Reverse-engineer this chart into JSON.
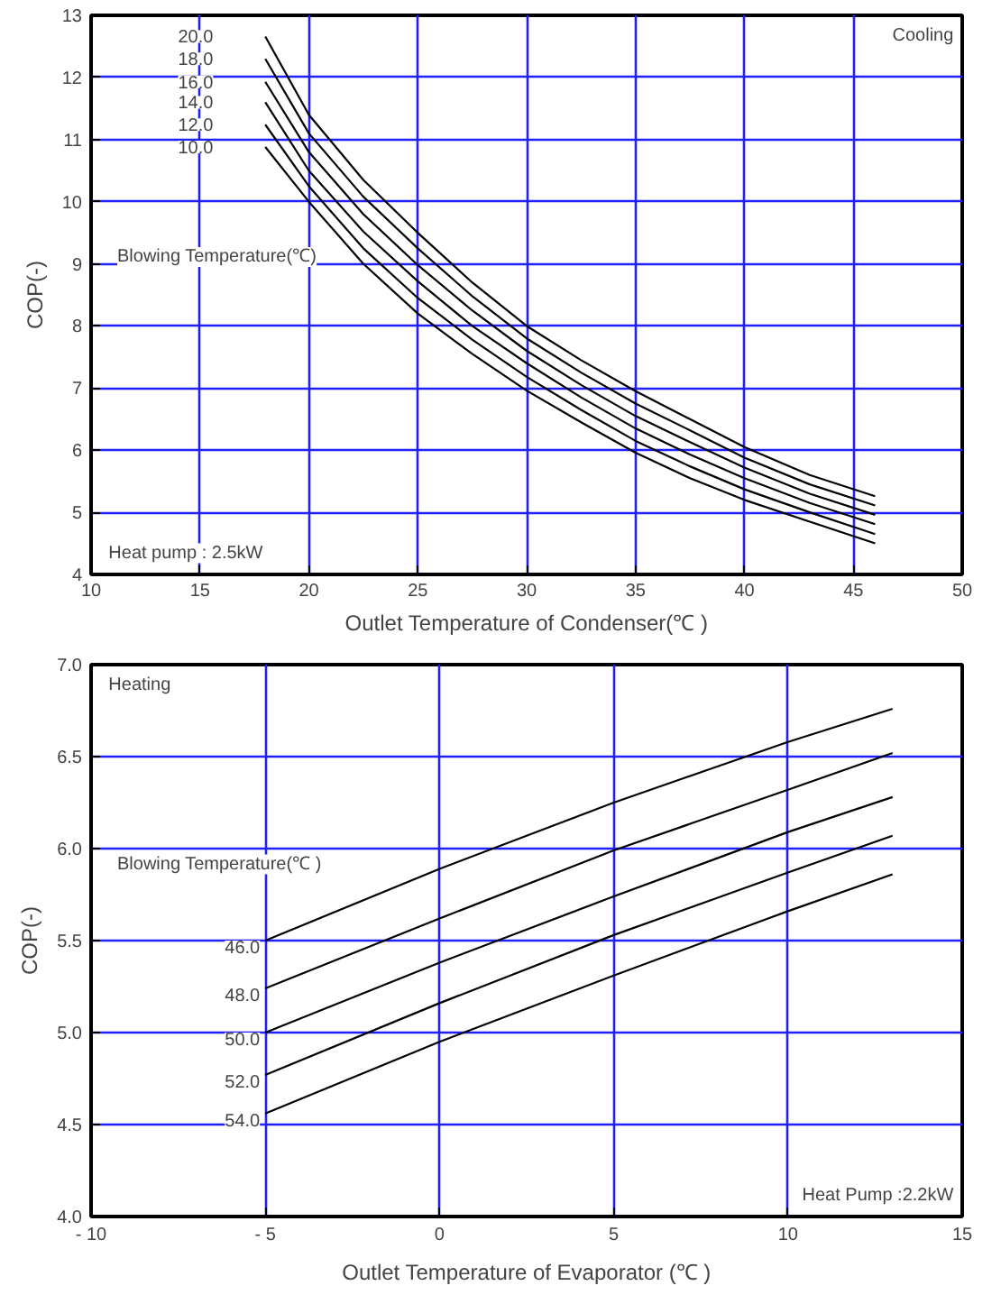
{
  "chart_data": [
    {
      "type": "line",
      "xlabel": "Outlet Temperature of Condenser(℃ )",
      "ylabel": "COP(-)",
      "legend_title": "Blowing Temperature(℃)",
      "annotations": [
        "Cooling",
        "Heat pump : 2.5kW"
      ],
      "x": [
        18,
        20,
        22.5,
        25,
        27.5,
        30,
        32.5,
        35,
        37.5,
        40,
        43,
        46
      ],
      "series": [
        {
          "name": "20.0",
          "color": "#000000",
          "values": [
            12.66,
            11.4,
            10.35,
            9.5,
            8.7,
            8.0,
            7.45,
            6.95,
            6.5,
            6.05,
            5.6,
            5.26
          ]
        },
        {
          "name": "18.0",
          "color": "#000000",
          "values": [
            12.3,
            11.1,
            10.08,
            9.25,
            8.48,
            7.8,
            7.25,
            6.75,
            6.32,
            5.88,
            5.45,
            5.11
          ]
        },
        {
          "name": "16.0",
          "color": "#000000",
          "values": [
            11.93,
            10.8,
            9.8,
            8.98,
            8.25,
            7.6,
            7.05,
            6.55,
            6.13,
            5.72,
            5.3,
            4.96
          ]
        },
        {
          "name": "14.0",
          "color": "#000000",
          "values": [
            11.6,
            10.5,
            9.52,
            8.72,
            8.0,
            7.4,
            6.85,
            6.35,
            5.93,
            5.55,
            5.15,
            4.81
          ]
        },
        {
          "name": "12.0",
          "color": "#000000",
          "values": [
            11.24,
            10.25,
            9.25,
            8.45,
            7.78,
            7.18,
            6.65,
            6.15,
            5.74,
            5.37,
            5.0,
            4.65
          ]
        },
        {
          "name": "10.0",
          "color": "#000000",
          "values": [
            10.88,
            10.0,
            9.0,
            8.2,
            7.55,
            6.96,
            6.45,
            5.96,
            5.55,
            5.2,
            4.85,
            4.5
          ]
        }
      ],
      "xlim": [
        10,
        50
      ],
      "ylim": [
        4,
        13
      ],
      "xticks": [
        10,
        15,
        20,
        25,
        30,
        35,
        40,
        45,
        50
      ],
      "yticks": [
        4,
        5,
        6,
        7,
        8,
        9,
        10,
        11,
        12,
        13
      ],
      "grid": true,
      "legend": false,
      "marker": "none",
      "line_style": "solid"
    },
    {
      "type": "line",
      "xlabel": "Outlet Temperature of Evaporator (℃ )",
      "ylabel": "COP(-)",
      "legend_title": "Blowing Temperature(℃ )",
      "annotations": [
        "Heating",
        "Heat Pump :2.2kW"
      ],
      "x": [
        -5,
        0,
        5,
        10,
        13
      ],
      "series": [
        {
          "name": "46.0",
          "color": "#000000",
          "values": [
            5.5,
            5.89,
            6.25,
            6.58,
            6.76
          ]
        },
        {
          "name": "48.0",
          "color": "#000000",
          "values": [
            5.24,
            5.62,
            5.99,
            6.32,
            6.52
          ]
        },
        {
          "name": "50.0",
          "color": "#000000",
          "values": [
            5.0,
            5.38,
            5.74,
            6.09,
            6.28
          ]
        },
        {
          "name": "52.0",
          "color": "#000000",
          "values": [
            4.77,
            5.16,
            5.53,
            5.87,
            6.07
          ]
        },
        {
          "name": "54.0",
          "color": "#000000",
          "values": [
            4.56,
            4.95,
            5.31,
            5.66,
            5.86
          ]
        }
      ],
      "xlim": [
        -10,
        15
      ],
      "ylim": [
        4.0,
        7.0
      ],
      "xticks": [
        {
          "value": -10,
          "label": "- 10"
        },
        {
          "value": -5,
          "label": "- 5"
        },
        0,
        5,
        10,
        15
      ],
      "yticks": [
        {
          "value": 4,
          "label": "4.0"
        },
        {
          "value": 4.5,
          "label": "4.5"
        },
        {
          "value": 5,
          "label": "5.0"
        },
        {
          "value": 5.5,
          "label": "5.5"
        },
        {
          "value": 6,
          "label": "6.0"
        },
        {
          "value": 6.5,
          "label": "6.5"
        },
        {
          "value": 7,
          "label": "7.0"
        }
      ],
      "grid": true,
      "legend": false,
      "marker": "none",
      "line_style": "solid"
    }
  ]
}
